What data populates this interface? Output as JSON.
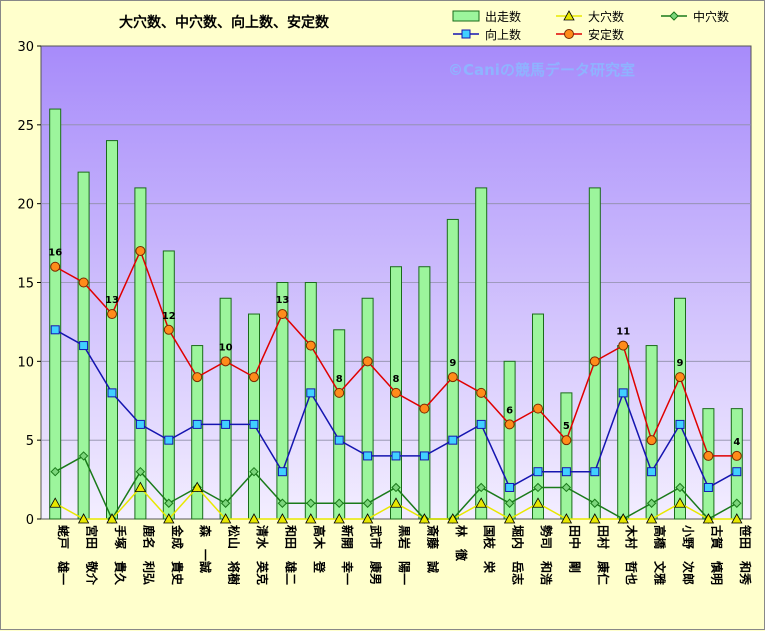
{
  "chart_data": {
    "type": "bar",
    "title": "大穴数、中穴数、向上数、安定数",
    "watermark": "©Caniの競馬データ研究室",
    "ylim": [
      0,
      30
    ],
    "yticks": [
      0,
      5,
      10,
      15,
      20,
      25,
      30
    ],
    "grid": true,
    "legend_position": "top-right",
    "colors": {
      "plot_top": "#a78bfa",
      "plot_bottom": "#f3eeff",
      "bar_fill": "#9cf59c",
      "bar_stroke": "#1a6b1a",
      "daiana": "#e8e800",
      "chuuana": "#1a7a1a",
      "koujou": "#1515b0",
      "antei": "#e00000",
      "antei_marker": "#ff8c1a"
    },
    "categories": [
      "蛯戸　雄一",
      "宮田　敬介",
      "手塚　貴久",
      "鹿名　利弘",
      "金成　貴史",
      "森　一誠",
      "松山　将樹",
      "清水　英克",
      "和田　雄二",
      "高木　登",
      "新開　幸一",
      "武市　康男",
      "黒岩　陽一",
      "斎藤　誠",
      "林　徹",
      "国枝　栄",
      "堀内　岳志",
      "勢司　和浩",
      "田中　剛",
      "田村　康仁",
      "木村　哲也",
      "高橋　文雅",
      "小野　次郎",
      "古賀　慎明",
      "笹田　和秀"
    ],
    "series": [
      {
        "name": "出走数",
        "kind": "bar",
        "values": [
          26,
          22,
          24,
          21,
          17,
          11,
          14,
          13,
          15,
          15,
          12,
          14,
          16,
          16,
          19,
          21,
          10,
          13,
          8,
          21,
          11,
          11,
          14,
          7,
          7
        ]
      },
      {
        "name": "大穴数",
        "kind": "line",
        "values": [
          1,
          0,
          0,
          2,
          0,
          2,
          0,
          0,
          0,
          0,
          0,
          0,
          1,
          0,
          0,
          1,
          0,
          1,
          0,
          0,
          0,
          0,
          1,
          0,
          0
        ]
      },
      {
        "name": "中穴数",
        "kind": "line",
        "values": [
          3,
          4,
          0,
          3,
          1,
          2,
          1,
          3,
          1,
          1,
          1,
          1,
          2,
          0,
          0,
          2,
          1,
          2,
          2,
          1,
          0,
          1,
          2,
          0,
          1
        ]
      },
      {
        "name": "向上数",
        "kind": "line",
        "values": [
          12,
          11,
          8,
          6,
          5,
          6,
          6,
          6,
          3,
          8,
          5,
          4,
          4,
          4,
          5,
          6,
          2,
          3,
          3,
          3,
          8,
          3,
          6,
          2,
          3
        ]
      },
      {
        "name": "安定数",
        "kind": "line",
        "values": [
          16,
          15,
          13,
          17,
          12,
          9,
          10,
          9,
          13,
          11,
          8,
          10,
          8,
          7,
          9,
          8,
          6,
          7,
          5,
          10,
          11,
          5,
          9,
          4,
          4
        ]
      }
    ]
  }
}
